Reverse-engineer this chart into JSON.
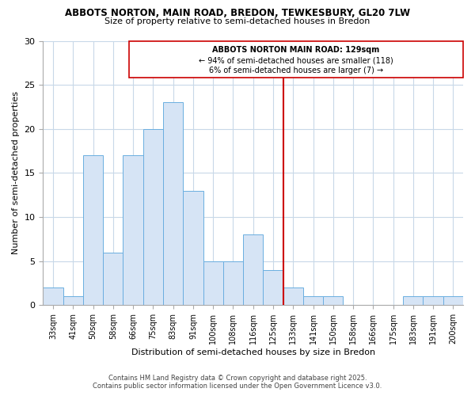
{
  "title": "ABBOTS NORTON, MAIN ROAD, BREDON, TEWKESBURY, GL20 7LW",
  "subtitle": "Size of property relative to semi-detached houses in Bredon",
  "xlabel": "Distribution of semi-detached houses by size in Bredon",
  "ylabel": "Number of semi-detached properties",
  "bins": [
    "33sqm",
    "41sqm",
    "50sqm",
    "58sqm",
    "66sqm",
    "75sqm",
    "83sqm",
    "91sqm",
    "100sqm",
    "108sqm",
    "116sqm",
    "125sqm",
    "133sqm",
    "141sqm",
    "150sqm",
    "158sqm",
    "166sqm",
    "175sqm",
    "183sqm",
    "191sqm",
    "200sqm"
  ],
  "values": [
    2,
    1,
    17,
    6,
    17,
    20,
    23,
    13,
    5,
    5,
    8,
    4,
    2,
    1,
    1,
    0,
    0,
    0,
    1,
    1,
    1
  ],
  "bar_color": "#d6e4f5",
  "bar_edge_color": "#6aaee0",
  "vline_x": 11.5,
  "vline_color": "#cc0000",
  "annotation_title": "ABBOTS NORTON MAIN ROAD: 129sqm",
  "annotation_line1": "← 94% of semi-detached houses are smaller (118)",
  "annotation_line2": "6% of semi-detached houses are larger (7) →",
  "annotation_box_color": "#cc0000",
  "ylim": [
    0,
    30
  ],
  "yticks": [
    0,
    5,
    10,
    15,
    20,
    25,
    30
  ],
  "footnote1": "Contains HM Land Registry data © Crown copyright and database right 2025.",
  "footnote2": "Contains public sector information licensed under the Open Government Licence v3.0.",
  "bg_color": "#ffffff",
  "grid_color": "#c8d8e8",
  "title_fontsize": 8.5,
  "subtitle_fontsize": 8,
  "axis_label_fontsize": 8,
  "tick_fontsize": 7,
  "annotation_fontsize": 7,
  "footnote_fontsize": 6
}
